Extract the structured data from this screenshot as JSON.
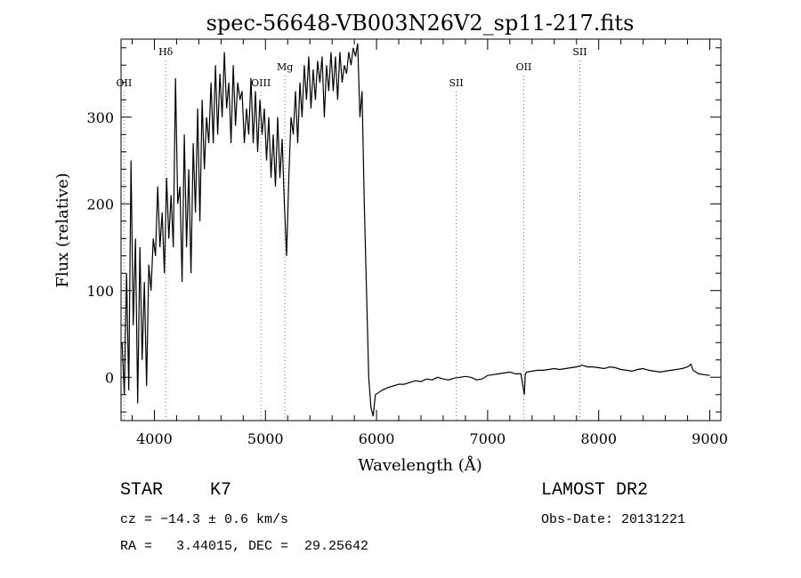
{
  "chart_data": {
    "type": "line",
    "title": "spec-56648-VB003N26V2_sp11-217.fits",
    "xlabel": "Wavelength (Å)",
    "ylabel": "Flux (relative)",
    "xlim": [
      3700,
      9100
    ],
    "ylim": [
      -50,
      390
    ],
    "xticks": [
      4000,
      5000,
      6000,
      7000,
      8000,
      9000
    ],
    "yticks": [
      0,
      100,
      200,
      300
    ],
    "grid": false,
    "line_color": "#000000",
    "marker_color": "#777777",
    "spectral_lines": [
      {
        "label": "OII",
        "wavelength": 3727,
        "level": "low"
      },
      {
        "label": "Hδ",
        "wavelength": 4102,
        "level": "high"
      },
      {
        "label": "OIII",
        "wavelength": 4959,
        "level": "low"
      },
      {
        "label": "Mg",
        "wavelength": 5175,
        "level": "mid"
      },
      {
        "label": "SII",
        "wavelength": 6717,
        "level": "low"
      },
      {
        "label": "OII",
        "wavelength": 7325,
        "level": "mid"
      },
      {
        "label": "SII",
        "wavelength": 7830,
        "level": "high"
      }
    ],
    "series": [
      {
        "x": [
          3710,
          3730,
          3750,
          3770,
          3790,
          3810,
          3830,
          3850,
          3870,
          3890,
          3910,
          3930,
          3950,
          3970,
          3990,
          4010,
          4030,
          4050,
          4070,
          4090,
          4110,
          4130,
          4150,
          4170,
          4190,
          4210,
          4230,
          4250,
          4270,
          4290,
          4310,
          4330,
          4350,
          4370,
          4390,
          4410,
          4430,
          4450,
          4470,
          4490,
          4510,
          4530,
          4550,
          4570,
          4590,
          4610,
          4630,
          4650,
          4670,
          4690,
          4710,
          4730,
          4750,
          4770,
          4790,
          4810,
          4830,
          4850,
          4870,
          4890,
          4910,
          4930,
          4950,
          4970,
          4990,
          5010,
          5030,
          5050,
          5070,
          5090,
          5110,
          5130,
          5150,
          5170,
          5190,
          5210,
          5230,
          5250,
          5270,
          5290,
          5310,
          5330,
          5350,
          5370,
          5390,
          5410,
          5430,
          5450,
          5470,
          5490,
          5510,
          5530,
          5550,
          5570,
          5590,
          5610,
          5630,
          5650,
          5670,
          5690,
          5710,
          5730,
          5750,
          5770,
          5790,
          5810,
          5830,
          5850,
          5870,
          5890,
          5910,
          5930,
          5950,
          5970,
          5990,
          6050,
          6100,
          6150,
          6200,
          6250,
          6300,
          6350,
          6400,
          6450,
          6500,
          6550,
          6600,
          6650,
          6700,
          6750,
          6800,
          6850,
          6900,
          6950,
          7000,
          7050,
          7100,
          7150,
          7200,
          7250,
          7300,
          7330,
          7340,
          7350,
          7400,
          7450,
          7500,
          7550,
          7600,
          7650,
          7700,
          7750,
          7800,
          7830,
          7850,
          7900,
          7950,
          8000,
          8050,
          8100,
          8150,
          8200,
          8250,
          8300,
          8350,
          8400,
          8450,
          8500,
          8550,
          8600,
          8650,
          8700,
          8750,
          8800,
          8830,
          8850,
          8900,
          8950,
          9000
        ],
        "y": [
          40,
          -20,
          120,
          -15,
          250,
          60,
          160,
          -30,
          150,
          20,
          110,
          -10,
          130,
          100,
          160,
          140,
          220,
          150,
          190,
          120,
          230,
          160,
          210,
          150,
          345,
          200,
          220,
          110,
          280,
          150,
          240,
          120,
          270,
          190,
          310,
          180,
          320,
          240,
          300,
          270,
          340,
          270,
          360,
          280,
          350,
          300,
          375,
          310,
          340,
          270,
          360,
          290,
          340,
          320,
          330,
          270,
          310,
          280,
          345,
          270,
          330,
          260,
          320,
          280,
          310,
          250,
          300,
          230,
          280,
          220,
          300,
          230,
          275,
          200,
          140,
          230,
          300,
          280,
          330,
          270,
          340,
          300,
          360,
          320,
          370,
          310,
          355,
          320,
          365,
          340,
          370,
          300,
          360,
          330,
          375,
          330,
          370,
          320,
          375,
          340,
          360,
          350,
          375,
          360,
          380,
          370,
          385,
          300,
          330,
          200,
          100,
          0,
          -35,
          -45,
          -20,
          -15,
          -12,
          -10,
          -8,
          -8,
          -6,
          -4,
          -5,
          -2,
          -3,
          0,
          -2,
          -3,
          -1,
          0,
          1,
          0,
          -3,
          -2,
          2,
          3,
          4,
          5,
          6,
          4,
          4,
          -20,
          4,
          6,
          7,
          8,
          8,
          9,
          10,
          9,
          10,
          11,
          12,
          13,
          14,
          12,
          12,
          11,
          10,
          12,
          11,
          9,
          8,
          7,
          9,
          10,
          8,
          7,
          6,
          7,
          8,
          9,
          10,
          12,
          15,
          8,
          4,
          3,
          2
        ]
      }
    ],
    "footer": {
      "left_line1_type": "STAR",
      "left_line1_class": "K7",
      "left_line2": "cz = −14.3 ± 0.6 km/s",
      "left_line3": "RA =   3.44015, DEC =  29.25642",
      "right_line1": "LAMOST DR2",
      "right_line2": "Obs-Date: 20131221"
    }
  }
}
